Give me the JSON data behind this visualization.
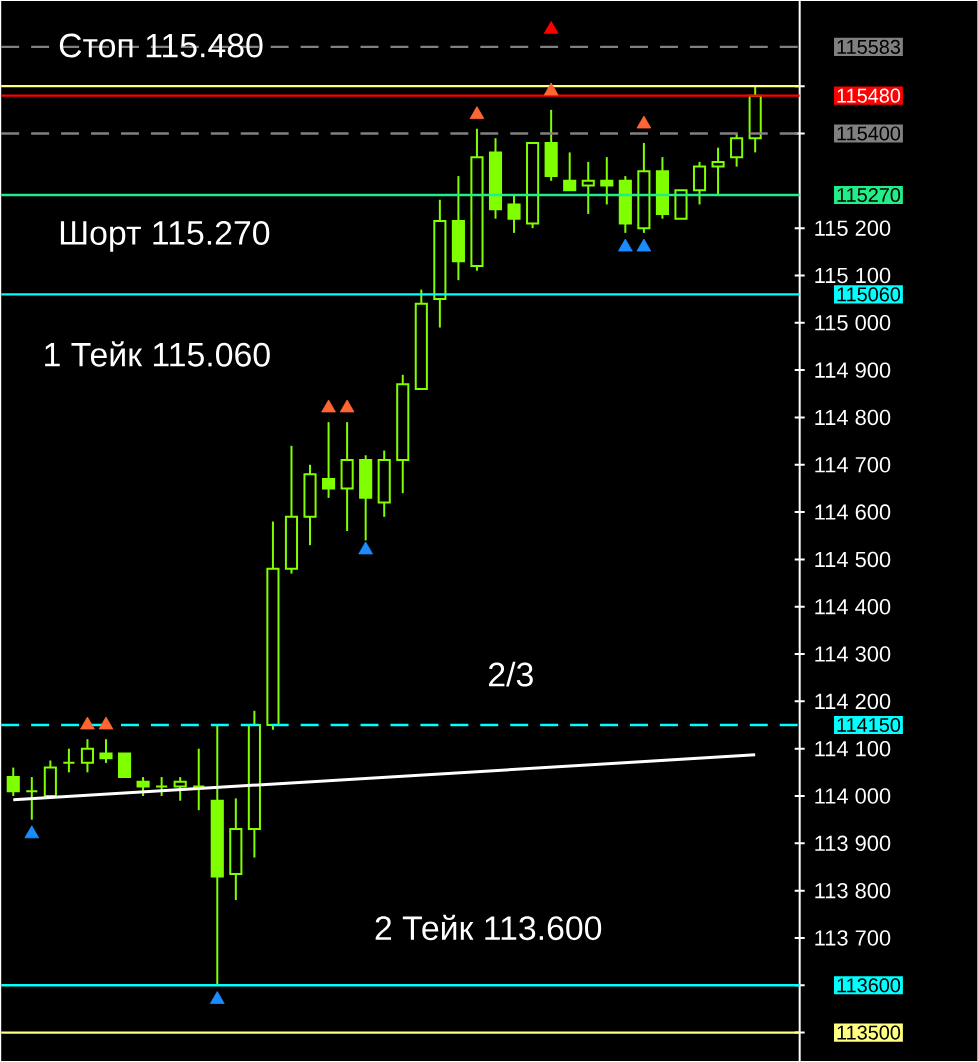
{
  "chart_data": {
    "type": "candlestick",
    "categories": [
      null,
      null,
      null,
      null,
      null,
      null,
      null,
      null,
      null,
      null,
      null,
      null,
      null,
      null,
      null,
      null,
      null,
      null,
      null,
      null,
      null,
      null,
      null,
      null,
      null,
      null,
      null,
      null,
      null,
      null,
      null,
      null,
      null,
      null,
      null,
      null,
      null,
      null,
      null,
      null,
      null
    ],
    "color": "#80ff00",
    "ohlc": [
      [
        114040,
        114060,
        114000,
        114010
      ],
      [
        114010,
        114040,
        113950,
        114010
      ],
      [
        114000,
        114075,
        114000,
        114060
      ],
      [
        114070,
        114100,
        114050,
        114070
      ],
      [
        114070,
        114120,
        114050,
        114100
      ],
      [
        114090,
        114120,
        114070,
        114080
      ],
      [
        114090,
        114090,
        114040,
        114040
      ],
      [
        114030,
        114040,
        114000,
        114020
      ],
      [
        114020,
        114040,
        114000,
        114020
      ],
      [
        114020,
        114040,
        113990,
        114030
      ],
      [
        114020,
        114100,
        113970,
        114020
      ],
      [
        113990,
        114150,
        113600,
        113830
      ],
      [
        113835,
        113995,
        113780,
        113930
      ],
      [
        113930,
        114180,
        113870,
        114150
      ],
      [
        114150,
        114580,
        114140,
        114480
      ],
      [
        114480,
        114740,
        114470,
        114590
      ],
      [
        114590,
        114700,
        114530,
        114680
      ],
      [
        114670,
        114790,
        114630,
        114650
      ],
      [
        114650,
        114790,
        114560,
        114710
      ],
      [
        114710,
        114720,
        114540,
        114630
      ],
      [
        114620,
        114730,
        114590,
        114710
      ],
      [
        114710,
        114890,
        114640,
        114870
      ],
      [
        114860,
        115070,
        114860,
        115040
      ],
      [
        115050,
        115260,
        114990,
        115215
      ],
      [
        115215,
        115310,
        115090,
        115130
      ],
      [
        115120,
        115410,
        115110,
        115350
      ],
      [
        115360,
        115390,
        115220,
        115240
      ],
      [
        115250,
        115270,
        115190,
        115220
      ],
      [
        115210,
        115380,
        115200,
        115380
      ],
      [
        115380,
        115450,
        115300,
        115310
      ],
      [
        115300,
        115360,
        115280,
        115280
      ],
      [
        115290,
        115340,
        115230,
        115300
      ],
      [
        115300,
        115350,
        115250,
        115290
      ],
      [
        115300,
        115310,
        115190,
        115210
      ],
      [
        115200,
        115380,
        115190,
        115320
      ],
      [
        115320,
        115350,
        115220,
        115230
      ],
      [
        115220,
        115280,
        115220,
        115280
      ],
      [
        115280,
        115340,
        115250,
        115330
      ],
      [
        115330,
        115370,
        115270,
        115340
      ],
      [
        115350,
        115400,
        115330,
        115390
      ],
      [
        115390,
        115500,
        115360,
        115480
      ]
    ],
    "series": [
      {
        "type": "scatter",
        "color": "#ff6633",
        "marker": "triangle",
        "values": [
          null,
          null,
          null,
          null,
          114150,
          114150,
          null,
          null,
          null,
          null,
          null,
          null,
          null,
          null,
          null,
          null,
          null,
          114820,
          114820,
          null,
          null,
          null,
          null,
          null,
          null,
          115440,
          null,
          null,
          null,
          115490,
          null,
          null,
          null,
          null,
          115420,
          null,
          null,
          null,
          null,
          null,
          null
        ]
      },
      {
        "type": "scatter",
        "color": "#1a8cff",
        "marker": "triangle",
        "values": [
          null,
          113920,
          null,
          null,
          null,
          null,
          null,
          null,
          null,
          null,
          null,
          113570,
          null,
          null,
          null,
          null,
          null,
          null,
          null,
          114520,
          null,
          null,
          null,
          null,
          null,
          null,
          null,
          null,
          null,
          null,
          null,
          null,
          null,
          115160,
          115160,
          null,
          null,
          null,
          null,
          null,
          null
        ]
      },
      {
        "type": "scatter",
        "color": "#ff0000",
        "marker": "triangle",
        "values": [
          null,
          null,
          null,
          null,
          null,
          null,
          null,
          null,
          null,
          null,
          null,
          null,
          null,
          null,
          null,
          null,
          null,
          null,
          null,
          null,
          null,
          null,
          null,
          null,
          null,
          null,
          null,
          null,
          null,
          115620,
          null,
          null,
          null,
          null,
          null,
          null,
          null,
          null,
          null,
          null,
          null
        ]
      },
      {
        "type": "line",
        "color": "#ffffff",
        "values": [
          113992,
          null,
          null,
          null,
          null,
          null,
          null,
          null,
          null,
          null,
          null,
          null,
          null,
          null,
          null,
          null,
          null,
          null,
          null,
          null,
          null,
          null,
          null,
          null,
          null,
          null,
          null,
          null,
          null,
          null,
          null,
          null,
          null,
          null,
          null,
          null,
          null,
          null,
          null,
          null,
          114087
        ]
      }
    ],
    "ylim": [
      113440,
      115680
    ],
    "yticks": [
      {
        "value": 113500,
        "label": null
      },
      {
        "value": 113600,
        "label": null
      },
      {
        "value": 113700,
        "label": "113 700"
      },
      {
        "value": 113800,
        "label": "113 800"
      },
      {
        "value": 113900,
        "label": "113 900"
      },
      {
        "value": 114000,
        "label": "114 000"
      },
      {
        "value": 114100,
        "label": "114 100"
      },
      {
        "value": 114200,
        "label": "114 200"
      },
      {
        "value": 114300,
        "label": "114 300"
      },
      {
        "value": 114400,
        "label": "114 400"
      },
      {
        "value": 114500,
        "label": "114 500"
      },
      {
        "value": 114600,
        "label": "114 600"
      },
      {
        "value": 114700,
        "label": "114 700"
      },
      {
        "value": 114800,
        "label": "114 800"
      },
      {
        "value": 114900,
        "label": "114 900"
      },
      {
        "value": 115000,
        "label": "115 000"
      },
      {
        "value": 115100,
        "label": "115 100"
      },
      {
        "value": 115200,
        "label": "115 200"
      },
      {
        "value": 115400,
        "label": null
      },
      {
        "value": 115500,
        "label": null
      }
    ],
    "ref_lines": [
      {
        "axis": "y",
        "value": 115583,
        "label": "115583",
        "color": "#808080",
        "line_style": "dashed"
      },
      {
        "axis": "y",
        "value": 115500,
        "color": "#ffff80"
      },
      {
        "axis": "y",
        "value": 115480,
        "label": "115480",
        "color": "#ff0000"
      },
      {
        "axis": "y",
        "value": 115400,
        "label": "115400",
        "color": "#808080",
        "line_style": "dashed"
      },
      {
        "axis": "y",
        "value": 115270,
        "label": "115270",
        "color": "#22ee88"
      },
      {
        "axis": "y",
        "value": 115060,
        "label": "115060",
        "color": "#00ffff"
      },
      {
        "axis": "y",
        "value": 114150,
        "label": "114150",
        "color": "#00ffff",
        "line_style": "dashed"
      },
      {
        "axis": "y",
        "value": 113600,
        "label": "113600",
        "color": "#00ffff"
      },
      {
        "axis": "y",
        "value": 113500,
        "label": "113500",
        "color": "#ffff80"
      }
    ],
    "annotations": [
      "Стоп 115.480",
      "Шорт 115.270",
      "1 Тейк 115.060",
      "2/3",
      "2 Тейк 113.600"
    ],
    "tick_labels": "y",
    "grid": false
  }
}
